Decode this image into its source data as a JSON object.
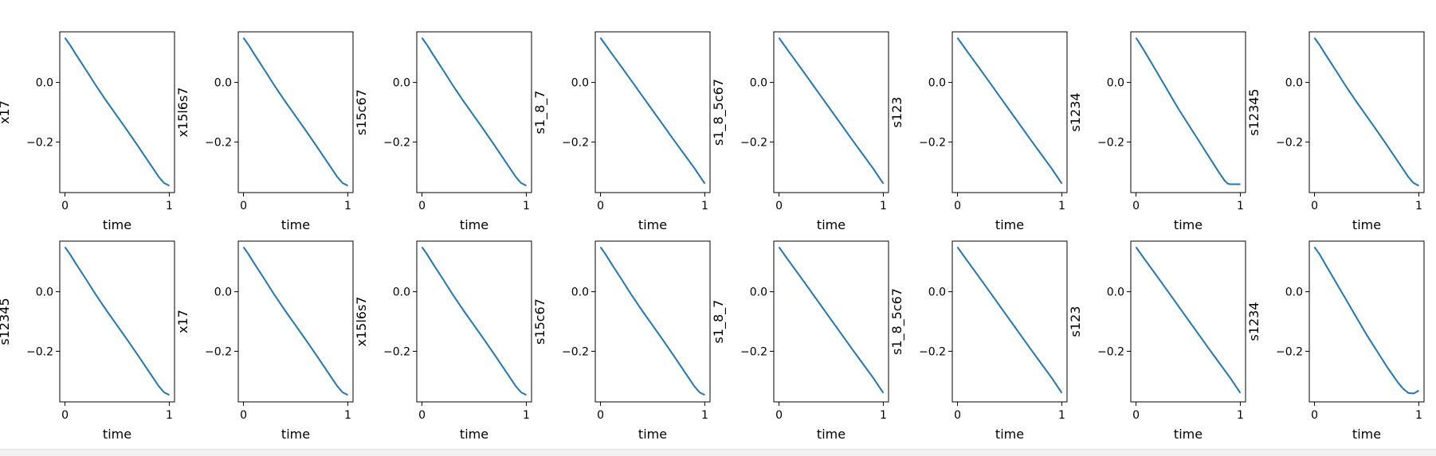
{
  "colors": {
    "line": "#1f77b4",
    "axes": "#000000",
    "background": "#ffffff"
  },
  "chart_data": [
    {
      "type": "line",
      "ylabel": "x17",
      "xlabel": "time",
      "xticks": [
        "0",
        "1"
      ],
      "yticks": [
        "0.0",
        "−0.2"
      ],
      "xlim": [
        -0.05,
        1.05
      ],
      "ylim": [
        -0.37,
        0.17
      ],
      "x": [
        0,
        0.05,
        0.1,
        0.2,
        0.3,
        0.4,
        0.5,
        0.6,
        0.7,
        0.8,
        0.9,
        0.95,
        1
      ],
      "y": [
        0.15,
        0.125,
        0.097,
        0.043,
        -0.012,
        -0.064,
        -0.113,
        -0.163,
        -0.214,
        -0.266,
        -0.318,
        -0.338,
        -0.347
      ]
    },
    {
      "type": "line",
      "ylabel": "x15l6s7",
      "xlabel": "time",
      "xticks": [
        "0",
        "1"
      ],
      "yticks": [
        "0.0",
        "−0.2"
      ],
      "xlim": [
        -0.05,
        1.05
      ],
      "ylim": [
        -0.37,
        0.17
      ],
      "x": [
        0,
        0.05,
        0.1,
        0.2,
        0.3,
        0.4,
        0.5,
        0.6,
        0.7,
        0.8,
        0.9,
        0.95,
        1
      ],
      "y": [
        0.15,
        0.125,
        0.097,
        0.043,
        -0.012,
        -0.064,
        -0.113,
        -0.163,
        -0.214,
        -0.266,
        -0.318,
        -0.338,
        -0.347
      ]
    },
    {
      "type": "line",
      "ylabel": "s15c67",
      "xlabel": "time",
      "xticks": [
        "0",
        "1"
      ],
      "yticks": [
        "0.0",
        "−0.2"
      ],
      "xlim": [
        -0.05,
        1.05
      ],
      "ylim": [
        -0.37,
        0.17
      ],
      "x": [
        0,
        0.05,
        0.1,
        0.2,
        0.3,
        0.4,
        0.5,
        0.6,
        0.7,
        0.8,
        0.9,
        0.95,
        1
      ],
      "y": [
        0.15,
        0.125,
        0.097,
        0.043,
        -0.012,
        -0.064,
        -0.113,
        -0.163,
        -0.214,
        -0.266,
        -0.318,
        -0.338,
        -0.347
      ]
    },
    {
      "type": "line",
      "ylabel": "s1_8_7",
      "xlabel": "time",
      "xticks": [
        "0",
        "1"
      ],
      "yticks": [
        "0.0",
        "−0.2"
      ],
      "xlim": [
        -0.05,
        1.05
      ],
      "ylim": [
        -0.37,
        0.17
      ],
      "x": [
        0,
        0.1,
        0.2,
        0.3,
        0.4,
        0.5,
        0.6,
        0.7,
        0.8,
        0.9,
        1
      ],
      "y": [
        0.15,
        0.101,
        0.053,
        0.004,
        -0.045,
        -0.094,
        -0.143,
        -0.192,
        -0.24,
        -0.288,
        -0.34
      ]
    },
    {
      "type": "line",
      "ylabel": "s1_8_5c67",
      "xlabel": "time",
      "xticks": [
        "0",
        "1"
      ],
      "yticks": [
        "0.0",
        "−0.2"
      ],
      "xlim": [
        -0.05,
        1.05
      ],
      "ylim": [
        -0.37,
        0.17
      ],
      "x": [
        0,
        0.1,
        0.2,
        0.3,
        0.4,
        0.5,
        0.6,
        0.7,
        0.8,
        0.9,
        1
      ],
      "y": [
        0.15,
        0.101,
        0.053,
        0.004,
        -0.045,
        -0.094,
        -0.143,
        -0.192,
        -0.24,
        -0.288,
        -0.34
      ]
    },
    {
      "type": "line",
      "ylabel": "s123",
      "xlabel": "time",
      "xticks": [
        "0",
        "1"
      ],
      "yticks": [
        "0.0",
        "−0.2"
      ],
      "xlim": [
        -0.05,
        1.05
      ],
      "ylim": [
        -0.37,
        0.17
      ],
      "x": [
        0,
        0.1,
        0.2,
        0.3,
        0.4,
        0.5,
        0.6,
        0.7,
        0.8,
        0.9,
        1
      ],
      "y": [
        0.15,
        0.101,
        0.053,
        0.004,
        -0.045,
        -0.094,
        -0.143,
        -0.192,
        -0.24,
        -0.288,
        -0.34
      ]
    },
    {
      "type": "line",
      "ylabel": "s1234",
      "xlabel": "time",
      "xticks": [
        "0",
        "1"
      ],
      "yticks": [
        "0.0",
        "−0.2"
      ],
      "xlim": [
        -0.05,
        1.05
      ],
      "ylim": [
        -0.37,
        0.17
      ],
      "x": [
        0,
        0.05,
        0.1,
        0.2,
        0.3,
        0.4,
        0.5,
        0.6,
        0.7,
        0.8,
        0.85,
        0.88,
        0.9,
        0.95,
        1
      ],
      "y": [
        0.15,
        0.123,
        0.094,
        0.035,
        -0.025,
        -0.085,
        -0.14,
        -0.195,
        -0.25,
        -0.305,
        -0.33,
        -0.34,
        -0.342,
        -0.342,
        -0.342
      ]
    },
    {
      "type": "line",
      "ylabel": "s12345",
      "xlabel": "time",
      "xticks": [
        "0",
        "1"
      ],
      "yticks": [
        "0.0",
        "−0.2"
      ],
      "xlim": [
        -0.05,
        1.05
      ],
      "ylim": [
        -0.37,
        0.17
      ],
      "x": [
        0,
        0.05,
        0.1,
        0.2,
        0.3,
        0.4,
        0.5,
        0.6,
        0.7,
        0.8,
        0.9,
        0.95,
        1
      ],
      "y": [
        0.15,
        0.125,
        0.097,
        0.043,
        -0.012,
        -0.064,
        -0.113,
        -0.163,
        -0.214,
        -0.266,
        -0.318,
        -0.338,
        -0.347
      ]
    },
    {
      "type": "line",
      "ylabel": "s12345",
      "xlabel": "time",
      "xticks": [
        "0",
        "1"
      ],
      "yticks": [
        "0.0",
        "−0.2"
      ],
      "xlim": [
        -0.05,
        1.05
      ],
      "ylim": [
        -0.37,
        0.17
      ],
      "x": [
        0,
        0.05,
        0.1,
        0.2,
        0.3,
        0.4,
        0.5,
        0.6,
        0.7,
        0.8,
        0.9,
        0.95,
        1
      ],
      "y": [
        0.15,
        0.125,
        0.097,
        0.043,
        -0.012,
        -0.064,
        -0.113,
        -0.163,
        -0.214,
        -0.266,
        -0.318,
        -0.338,
        -0.347
      ]
    },
    {
      "type": "line",
      "ylabel": "x17",
      "xlabel": "time",
      "xticks": [
        "0",
        "1"
      ],
      "yticks": [
        "0.0",
        "−0.2"
      ],
      "xlim": [
        -0.05,
        1.05
      ],
      "ylim": [
        -0.37,
        0.17
      ],
      "x": [
        0,
        0.05,
        0.1,
        0.2,
        0.3,
        0.4,
        0.5,
        0.6,
        0.7,
        0.8,
        0.9,
        0.95,
        1
      ],
      "y": [
        0.15,
        0.125,
        0.097,
        0.043,
        -0.012,
        -0.064,
        -0.113,
        -0.163,
        -0.214,
        -0.266,
        -0.318,
        -0.338,
        -0.347
      ]
    },
    {
      "type": "line",
      "ylabel": "x15l6s7",
      "xlabel": "time",
      "xticks": [
        "0",
        "1"
      ],
      "yticks": [
        "0.0",
        "−0.2"
      ],
      "xlim": [
        -0.05,
        1.05
      ],
      "ylim": [
        -0.37,
        0.17
      ],
      "x": [
        0,
        0.05,
        0.1,
        0.2,
        0.3,
        0.4,
        0.5,
        0.6,
        0.7,
        0.8,
        0.9,
        0.95,
        1
      ],
      "y": [
        0.15,
        0.125,
        0.097,
        0.043,
        -0.012,
        -0.064,
        -0.113,
        -0.163,
        -0.214,
        -0.266,
        -0.318,
        -0.338,
        -0.347
      ]
    },
    {
      "type": "line",
      "ylabel": "s15c67",
      "xlabel": "time",
      "xticks": [
        "0",
        "1"
      ],
      "yticks": [
        "0.0",
        "−0.2"
      ],
      "xlim": [
        -0.05,
        1.05
      ],
      "ylim": [
        -0.37,
        0.17
      ],
      "x": [
        0,
        0.05,
        0.1,
        0.2,
        0.3,
        0.4,
        0.5,
        0.6,
        0.7,
        0.8,
        0.9,
        0.95,
        1
      ],
      "y": [
        0.15,
        0.125,
        0.097,
        0.043,
        -0.012,
        -0.064,
        -0.113,
        -0.163,
        -0.214,
        -0.266,
        -0.318,
        -0.338,
        -0.347
      ]
    },
    {
      "type": "line",
      "ylabel": "s1_8_7",
      "xlabel": "time",
      "xticks": [
        "0",
        "1"
      ],
      "yticks": [
        "0.0",
        "−0.2"
      ],
      "xlim": [
        -0.05,
        1.05
      ],
      "ylim": [
        -0.37,
        0.17
      ],
      "x": [
        0,
        0.1,
        0.2,
        0.3,
        0.4,
        0.5,
        0.6,
        0.7,
        0.8,
        0.9,
        1
      ],
      "y": [
        0.15,
        0.101,
        0.053,
        0.004,
        -0.045,
        -0.094,
        -0.143,
        -0.192,
        -0.24,
        -0.288,
        -0.34
      ]
    },
    {
      "type": "line",
      "ylabel": "s1_8_5c67",
      "xlabel": "time",
      "xticks": [
        "0",
        "1"
      ],
      "yticks": [
        "0.0",
        "−0.2"
      ],
      "xlim": [
        -0.05,
        1.05
      ],
      "ylim": [
        -0.37,
        0.17
      ],
      "x": [
        0,
        0.1,
        0.2,
        0.3,
        0.4,
        0.5,
        0.6,
        0.7,
        0.8,
        0.9,
        1
      ],
      "y": [
        0.15,
        0.101,
        0.053,
        0.004,
        -0.045,
        -0.094,
        -0.143,
        -0.192,
        -0.24,
        -0.288,
        -0.34
      ]
    },
    {
      "type": "line",
      "ylabel": "s123",
      "xlabel": "time",
      "xticks": [
        "0",
        "1"
      ],
      "yticks": [
        "0.0",
        "−0.2"
      ],
      "xlim": [
        -0.05,
        1.05
      ],
      "ylim": [
        -0.37,
        0.17
      ],
      "x": [
        0,
        0.1,
        0.2,
        0.3,
        0.4,
        0.5,
        0.6,
        0.7,
        0.8,
        0.9,
        1
      ],
      "y": [
        0.15,
        0.101,
        0.053,
        0.004,
        -0.045,
        -0.094,
        -0.143,
        -0.192,
        -0.24,
        -0.288,
        -0.34
      ]
    },
    {
      "type": "line",
      "ylabel": "s1234",
      "xlabel": "time",
      "xticks": [
        "0",
        "1"
      ],
      "yticks": [
        "0.0",
        "−0.2"
      ],
      "xlim": [
        -0.05,
        1.05
      ],
      "ylim": [
        -0.37,
        0.17
      ],
      "x": [
        0,
        0.05,
        0.1,
        0.2,
        0.3,
        0.4,
        0.5,
        0.6,
        0.7,
        0.8,
        0.85,
        0.9,
        0.95,
        1
      ],
      "y": [
        0.15,
        0.125,
        0.095,
        0.035,
        -0.025,
        -0.085,
        -0.145,
        -0.2,
        -0.255,
        -0.305,
        -0.326,
        -0.34,
        -0.342,
        -0.332
      ]
    },
    {
      "type": "line",
      "ylabel": "s12345",
      "xlabel": "time",
      "xticks": [
        "0",
        "1"
      ],
      "yticks": [
        "0.0",
        "−0.2"
      ],
      "xlim": [
        -0.05,
        1.05
      ],
      "ylim": [
        -0.37,
        0.17
      ],
      "x": [
        0,
        0.05,
        0.1,
        0.2,
        0.3,
        0.4,
        0.5,
        0.6,
        0.7,
        0.8,
        0.9,
        0.95,
        1
      ],
      "y": [
        0.15,
        0.125,
        0.097,
        0.043,
        -0.012,
        -0.064,
        -0.113,
        -0.163,
        -0.214,
        -0.266,
        -0.318,
        -0.338,
        -0.347
      ]
    },
    {
      "type": "line",
      "ylabel": "s12345",
      "xlabel": "time",
      "xticks": [
        "0",
        "1"
      ],
      "yticks": [
        "0.0",
        "−0.2"
      ],
      "xlim": [
        -0.05,
        1.05
      ],
      "ylim": [
        -0.37,
        0.17
      ],
      "x": [
        0,
        0.05,
        0.1,
        0.2,
        0.3,
        0.4,
        0.5,
        0.6,
        0.7,
        0.8,
        0.9,
        0.95,
        1
      ],
      "y": [
        0.15,
        0.125,
        0.097,
        0.043,
        -0.012,
        -0.064,
        -0.113,
        -0.163,
        -0.214,
        -0.266,
        -0.318,
        -0.338,
        -0.347
      ]
    }
  ]
}
